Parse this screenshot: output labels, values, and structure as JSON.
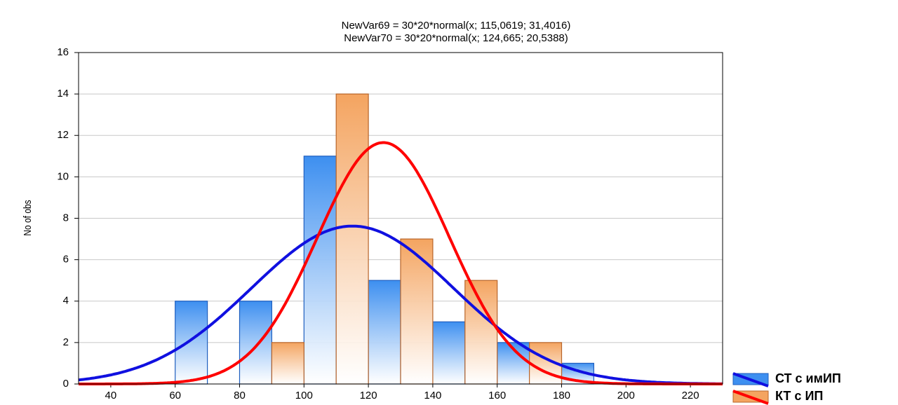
{
  "chart_data": {
    "type": "histogram",
    "title_lines": [
      "NewVar69 = 30*20*normal(x; 115,0619; 31,4016)",
      "NewVar70 = 30*20*normal(x; 124,665; 20,5388)"
    ],
    "y_label": "No of obs",
    "bins": [
      60,
      80,
      100,
      120,
      140,
      160,
      180,
      200
    ],
    "series": [
      {
        "name": "СТ с имИП",
        "color": "#3d8ff0",
        "edge_color": "#1f5fbf",
        "line_color": "#1010e0",
        "values": [
          4,
          4,
          11,
          5,
          3,
          2,
          1
        ],
        "fit": {
          "n": 30,
          "width": 20,
          "mean": 115.0619,
          "sd": 31.4016
        }
      },
      {
        "name": "КТ с ИП",
        "color": "#f4a460",
        "edge_color": "#b8652a",
        "line_color": "#ff0000",
        "values": [
          0,
          2,
          14,
          7,
          5,
          2,
          0
        ],
        "fit": {
          "n": 30,
          "width": 20,
          "mean": 124.665,
          "sd": 20.5388
        }
      }
    ],
    "xlim": [
      30,
      230
    ],
    "xticks": [
      40,
      60,
      80,
      100,
      120,
      140,
      160,
      180,
      200,
      220
    ],
    "ylim": [
      0,
      16
    ],
    "yticks": [
      0,
      2,
      4,
      6,
      8,
      10,
      12,
      14,
      16
    ],
    "grid": true,
    "legend": "bottom-right"
  }
}
